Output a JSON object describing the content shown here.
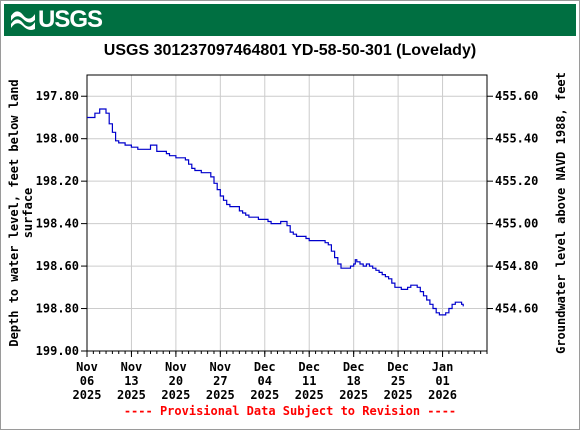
{
  "banner": {
    "logo_text": "USGS",
    "color": "#006f41"
  },
  "footnote": "---- Provisional Data Subject to Revision ----",
  "chart_data": {
    "type": "line",
    "title": "USGS 301237097464801 YD-58-50-301 (Lovelady)",
    "ylabel": "Depth to water level, feet below land surface",
    "ylabel_lines": [
      "Depth to water level, feet below land",
      "surface"
    ],
    "y2label": "Groundwater level above NAVD 1988, feet",
    "ylim": [
      199.0,
      197.7
    ],
    "y_inverted": true,
    "yticks": [
      "197.80",
      "198.00",
      "198.20",
      "198.40",
      "198.60",
      "198.80",
      "199.00"
    ],
    "yticks_values": [
      197.8,
      198.0,
      198.2,
      198.4,
      198.6,
      198.8,
      199.0
    ],
    "y2ticks": [
      "455.60",
      "455.40",
      "455.20",
      "455.00",
      "454.80",
      "454.60"
    ],
    "y2ticks_values": [
      455.6,
      455.4,
      455.2,
      455.0,
      454.8,
      454.6
    ],
    "y2_offset": 653.4,
    "xlim": [
      "2025-11-06",
      "2026-01-08"
    ],
    "xticks": [
      {
        "date": "2025-11-06",
        "lines": [
          "Nov",
          "06",
          "2025"
        ]
      },
      {
        "date": "2025-11-13",
        "lines": [
          "Nov",
          "13",
          "2025"
        ]
      },
      {
        "date": "2025-11-20",
        "lines": [
          "Nov",
          "20",
          "2025"
        ]
      },
      {
        "date": "2025-11-27",
        "lines": [
          "Nov",
          "27",
          "2025"
        ]
      },
      {
        "date": "2025-12-04",
        "lines": [
          "Dec",
          "04",
          "2025"
        ]
      },
      {
        "date": "2025-12-11",
        "lines": [
          "Dec",
          "11",
          "2025"
        ]
      },
      {
        "date": "2025-12-18",
        "lines": [
          "Dec",
          "18",
          "2025"
        ]
      },
      {
        "date": "2025-12-25",
        "lines": [
          "Dec",
          "25",
          "2025"
        ]
      },
      {
        "date": "2026-01-01",
        "lines": [
          "Jan",
          "01",
          "2026"
        ]
      }
    ],
    "grid": true,
    "series": [
      {
        "color": "#0000cc",
        "points": [
          [
            "2025-11-06T00",
            197.9
          ],
          [
            "2025-11-07T00",
            197.9
          ],
          [
            "2025-11-07T06",
            197.88
          ],
          [
            "2025-11-08T00",
            197.86
          ],
          [
            "2025-11-08T12",
            197.86
          ],
          [
            "2025-11-09T00",
            197.88
          ],
          [
            "2025-11-09T12",
            197.93
          ],
          [
            "2025-11-10T00",
            197.97
          ],
          [
            "2025-11-10T12",
            198.01
          ],
          [
            "2025-11-11T00",
            198.02
          ],
          [
            "2025-11-12T00",
            198.03
          ],
          [
            "2025-11-13T00",
            198.04
          ],
          [
            "2025-11-14T00",
            198.05
          ],
          [
            "2025-11-15T00",
            198.05
          ],
          [
            "2025-11-16T00",
            198.03
          ],
          [
            "2025-11-16T12",
            198.03
          ],
          [
            "2025-11-17T00",
            198.06
          ],
          [
            "2025-11-18T00",
            198.06
          ],
          [
            "2025-11-18T12",
            198.07
          ],
          [
            "2025-11-19T00",
            198.08
          ],
          [
            "2025-11-20T00",
            198.09
          ],
          [
            "2025-11-21T00",
            198.09
          ],
          [
            "2025-11-21T12",
            198.1
          ],
          [
            "2025-11-22T00",
            198.12
          ],
          [
            "2025-11-22T12",
            198.14
          ],
          [
            "2025-11-23T00",
            198.15
          ],
          [
            "2025-11-24T00",
            198.16
          ],
          [
            "2025-11-25T00",
            198.16
          ],
          [
            "2025-11-25T12",
            198.18
          ],
          [
            "2025-11-26T00",
            198.21
          ],
          [
            "2025-11-26T12",
            198.24
          ],
          [
            "2025-11-27T00",
            198.27
          ],
          [
            "2025-11-27T12",
            198.29
          ],
          [
            "2025-11-28T00",
            198.31
          ],
          [
            "2025-11-28T12",
            198.32
          ],
          [
            "2025-11-29T12",
            198.32
          ],
          [
            "2025-11-30T00",
            198.34
          ],
          [
            "2025-11-30T12",
            198.35
          ],
          [
            "2025-12-01T00",
            198.36
          ],
          [
            "2025-12-01T12",
            198.37
          ],
          [
            "2025-12-02T12",
            198.37
          ],
          [
            "2025-12-03T00",
            198.38
          ],
          [
            "2025-12-04T00",
            198.38
          ],
          [
            "2025-12-04T12",
            198.39
          ],
          [
            "2025-12-05T00",
            198.4
          ],
          [
            "2025-12-06T00",
            198.4
          ],
          [
            "2025-12-06T12",
            198.39
          ],
          [
            "2025-12-07T00",
            198.39
          ],
          [
            "2025-12-07T12",
            198.41
          ],
          [
            "2025-12-08T00",
            198.44
          ],
          [
            "2025-12-08T12",
            198.45
          ],
          [
            "2025-12-09T00",
            198.46
          ],
          [
            "2025-12-10T00",
            198.46
          ],
          [
            "2025-12-10T12",
            198.47
          ],
          [
            "2025-12-11T00",
            198.48
          ],
          [
            "2025-12-12T00",
            198.48
          ],
          [
            "2025-12-13T00",
            198.48
          ],
          [
            "2025-12-13T12",
            198.49
          ],
          [
            "2025-12-14T00",
            198.5
          ],
          [
            "2025-12-14T12",
            198.53
          ],
          [
            "2025-12-15T00",
            198.56
          ],
          [
            "2025-12-15T12",
            198.59
          ],
          [
            "2025-12-16T00",
            198.61
          ],
          [
            "2025-12-16T12",
            198.61
          ],
          [
            "2025-12-17T00",
            198.61
          ],
          [
            "2025-12-17T12",
            198.6
          ],
          [
            "2025-12-18T00",
            198.59
          ],
          [
            "2025-12-18T06",
            198.57
          ],
          [
            "2025-12-18T12",
            198.58
          ],
          [
            "2025-12-19T00",
            198.59
          ],
          [
            "2025-12-19T12",
            198.6
          ],
          [
            "2025-12-20T00",
            198.59
          ],
          [
            "2025-12-20T12",
            198.6
          ],
          [
            "2025-12-21T00",
            198.61
          ],
          [
            "2025-12-21T12",
            198.62
          ],
          [
            "2025-12-22T00",
            198.63
          ],
          [
            "2025-12-22T12",
            198.64
          ],
          [
            "2025-12-23T00",
            198.65
          ],
          [
            "2025-12-23T12",
            198.66
          ],
          [
            "2025-12-24T00",
            198.68
          ],
          [
            "2025-12-24T12",
            198.7
          ],
          [
            "2025-12-25T00",
            198.7
          ],
          [
            "2025-12-25T12",
            198.71
          ],
          [
            "2025-12-26T00",
            198.71
          ],
          [
            "2025-12-26T12",
            198.7
          ],
          [
            "2025-12-27T00",
            198.69
          ],
          [
            "2025-12-27T12",
            198.69
          ],
          [
            "2025-12-28T00",
            198.7
          ],
          [
            "2025-12-28T12",
            198.72
          ],
          [
            "2025-12-29T00",
            198.74
          ],
          [
            "2025-12-29T12",
            198.76
          ],
          [
            "2025-12-30T00",
            198.78
          ],
          [
            "2025-12-30T12",
            198.8
          ],
          [
            "2025-12-31T00",
            198.82
          ],
          [
            "2025-12-31T12",
            198.83
          ],
          [
            "2026-01-01T00",
            198.83
          ],
          [
            "2026-01-01T12",
            198.82
          ],
          [
            "2026-01-02T00",
            198.8
          ],
          [
            "2026-01-02T12",
            198.78
          ],
          [
            "2026-01-03T00",
            198.77
          ],
          [
            "2026-01-03T12",
            198.77
          ],
          [
            "2026-01-04T00",
            198.78
          ],
          [
            "2026-01-04T06",
            198.79
          ]
        ]
      }
    ]
  }
}
